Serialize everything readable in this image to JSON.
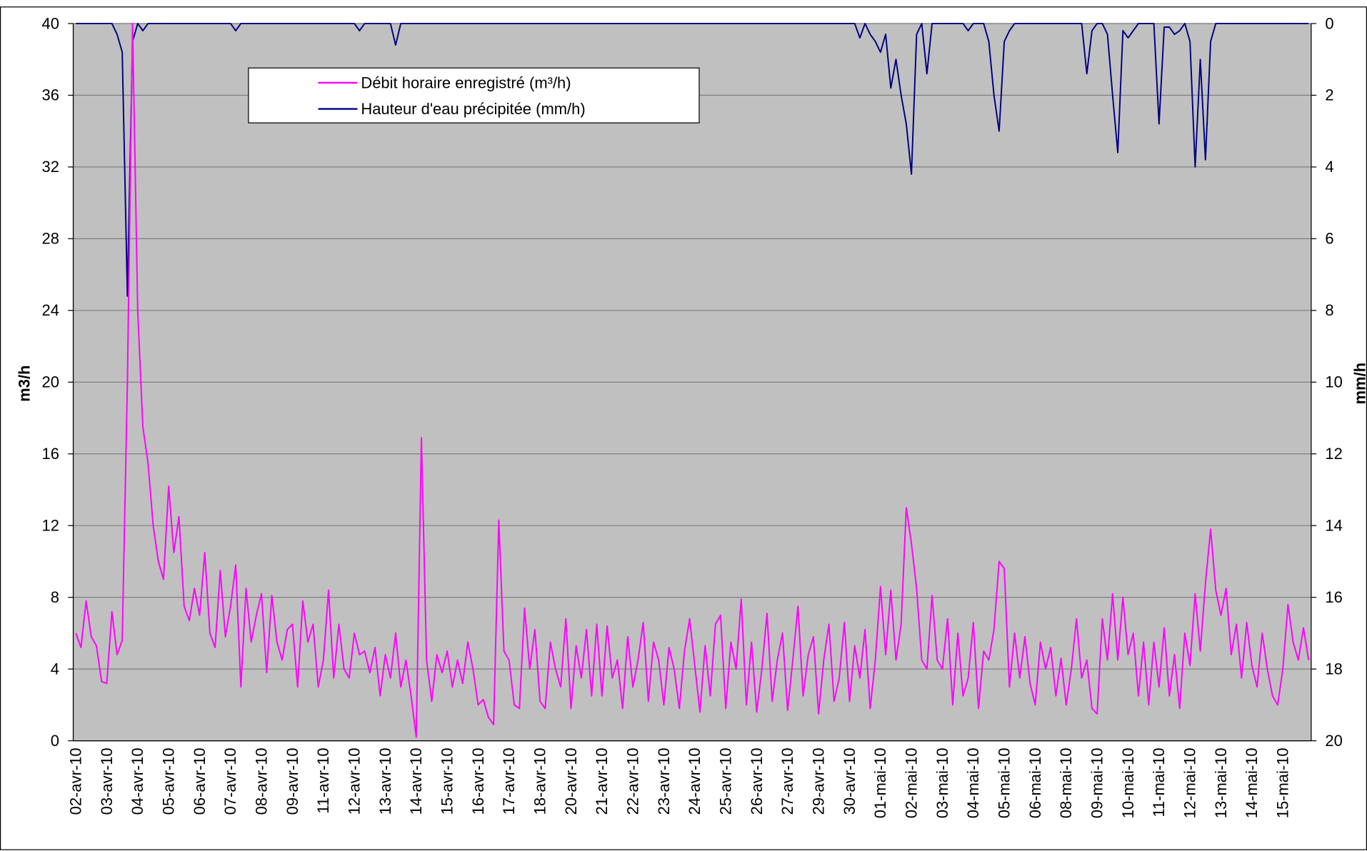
{
  "chart_data": {
    "type": "line",
    "ylabel": "m3/h",
    "y2label": "mm/h",
    "ylim": [
      0,
      40
    ],
    "yticks": [
      0,
      4,
      8,
      12,
      16,
      20,
      24,
      28,
      32,
      36,
      40
    ],
    "y2lim": [
      20,
      0
    ],
    "y2ticks": [
      0,
      2,
      4,
      6,
      8,
      10,
      12,
      14,
      16,
      18,
      20
    ],
    "grid": true,
    "legend": "upper left",
    "categories": [
      "02-avr-10",
      null,
      null,
      null,
      null,
      null,
      "03-avr-10",
      null,
      null,
      null,
      null,
      null,
      "04-avr-10",
      null,
      null,
      null,
      null,
      null,
      "05-avr-10",
      null,
      null,
      null,
      null,
      null,
      "06-avr-10",
      null,
      null,
      null,
      null,
      null,
      "07-avr-10",
      null,
      null,
      null,
      null,
      null,
      "08-avr-10",
      null,
      null,
      null,
      null,
      null,
      "09-avr-10",
      null,
      null,
      null,
      null,
      null,
      "11-avr-10",
      null,
      null,
      null,
      null,
      null,
      "12-avr-10",
      null,
      null,
      null,
      null,
      null,
      "13-avr-10",
      null,
      null,
      null,
      null,
      null,
      "14-avr-10",
      null,
      null,
      null,
      null,
      null,
      "15-avr-10",
      null,
      null,
      null,
      null,
      null,
      "16-avr-10",
      null,
      null,
      null,
      null,
      null,
      "17-avr-10",
      null,
      null,
      null,
      null,
      null,
      "18-avr-10",
      null,
      null,
      null,
      null,
      null,
      "20-avr-10",
      null,
      null,
      null,
      null,
      null,
      "21-avr-10",
      null,
      null,
      null,
      null,
      null,
      "22-avr-10",
      null,
      null,
      null,
      null,
      null,
      "23-avr-10",
      null,
      null,
      null,
      null,
      null,
      "24-avr-10",
      null,
      null,
      null,
      null,
      null,
      "25-avr-10",
      null,
      null,
      null,
      null,
      null,
      "26-avr-10",
      null,
      null,
      null,
      null,
      null,
      "27-avr-10",
      null,
      null,
      null,
      null,
      null,
      "29-avr-10",
      null,
      null,
      null,
      null,
      null,
      "30-avr-10",
      null,
      null,
      null,
      null,
      null,
      "01-mai-10",
      null,
      null,
      null,
      null,
      null,
      "02-mai-10",
      null,
      null,
      null,
      null,
      null,
      "03-mai-10",
      null,
      null,
      null,
      null,
      null,
      "04-mai-10",
      null,
      null,
      null,
      null,
      null,
      "05-mai-10",
      null,
      null,
      null,
      null,
      null,
      "06-mai-10",
      null,
      null,
      null,
      null,
      null,
      "08-mai-10",
      null,
      null,
      null,
      null,
      null,
      "09-mai-10",
      null,
      null,
      null,
      null,
      null,
      "10-mai-10",
      null,
      null,
      null,
      null,
      null,
      "11-mai-10",
      null,
      null,
      null,
      null,
      null,
      "12-mai-10",
      null,
      null,
      null,
      null,
      null,
      "13-mai-10",
      null,
      null,
      null,
      null,
      null,
      "14-mai-10",
      null,
      null,
      null,
      null,
      null,
      "15-mai-10",
      null,
      null,
      null,
      null,
      null
    ],
    "series": [
      {
        "name": "Débit horaire enregistré (m³/h)",
        "color": "#ff00ff",
        "values": [
          6,
          5.2,
          7.8,
          5.8,
          5.3,
          3.3,
          3.2,
          7.2,
          4.8,
          5.6,
          20,
          40,
          24,
          17.5,
          15.5,
          12,
          10,
          9,
          14.2,
          10.5,
          12.5,
          7.5,
          6.7,
          8.5,
          7,
          10.5,
          6,
          5.2,
          9.5,
          5.8,
          7.5,
          9.8,
          3,
          8.5,
          5.5,
          7,
          8.2,
          3.8,
          8.1,
          5.5,
          4.5,
          6.2,
          6.5,
          3,
          7.8,
          5.5,
          6.5,
          3,
          4.5,
          8.4,
          3.5,
          6.5,
          4,
          3.5,
          6,
          4.8,
          5,
          3.8,
          5.2,
          2.5,
          4.8,
          3.5,
          6,
          3,
          4.5,
          2.5,
          0.2,
          16.9,
          4.5,
          2.2,
          4.8,
          3.8,
          5,
          3,
          4.5,
          3.2,
          5.5,
          4,
          2,
          2.3,
          1.3,
          0.9,
          12.3,
          5,
          4.5,
          2,
          1.8,
          7.4,
          4,
          6.2,
          2.2,
          1.8,
          5.5,
          4,
          3,
          6.8,
          1.8,
          5.3,
          3.5,
          6.2,
          2.5,
          6.5,
          2.5,
          6.4,
          3.5,
          4.5,
          1.8,
          5.8,
          3,
          4.5,
          6.6,
          2.2,
          5.5,
          4.5,
          2,
          5.2,
          4,
          1.8,
          5,
          6.8,
          4.2,
          1.6,
          5.3,
          2.5,
          6.5,
          7,
          1.8,
          5.5,
          4,
          7.9,
          2,
          5.5,
          1.6,
          4,
          7.1,
          2.2,
          4.5,
          6,
          1.7,
          4.5,
          7.5,
          2.5,
          4.8,
          5.8,
          1.5,
          4.5,
          6.5,
          2.2,
          3.5,
          6.6,
          2.2,
          5.3,
          3.5,
          6.2,
          1.8,
          4.5,
          8.6,
          4.8,
          8.4,
          4.5,
          6.5,
          13,
          11,
          8.5,
          4.5,
          4,
          8.1,
          4.5,
          4,
          6.8,
          2,
          6,
          2.5,
          3.5,
          6.6,
          1.8,
          5,
          4.5,
          6.2,
          10,
          9.6,
          3,
          6,
          3.5,
          5.8,
          3.2,
          2,
          5.5,
          4,
          5.2,
          2.5,
          4.6,
          2,
          4,
          6.8,
          3.5,
          4.5,
          1.8,
          1.5,
          6.8,
          4.5,
          8.2,
          4.5,
          8,
          4.8,
          6,
          2.5,
          5.5,
          2,
          5.5,
          3,
          6.3,
          2.5,
          4.8,
          1.8,
          6,
          4.2,
          8.2,
          5,
          8.8,
          11.8,
          8.4,
          7,
          8.5,
          4.8,
          6.5,
          3.5,
          6.6,
          4.2,
          3,
          6,
          4,
          2.5,
          2,
          4,
          7.6,
          5.5,
          4.5,
          6.3,
          4.5
        ]
      },
      {
        "name": "Hauteur d'eau précipitée (mm/h)",
        "color": "#000080",
        "axis": "y2",
        "values": [
          0,
          0,
          0,
          0,
          0,
          0,
          0,
          0,
          0.3,
          0.8,
          7.6,
          0.5,
          0,
          0.2,
          0,
          0,
          0,
          0,
          0,
          0,
          0,
          0,
          0,
          0,
          0,
          0,
          0,
          0,
          0,
          0,
          0,
          0.2,
          0,
          0,
          0,
          0,
          0,
          0,
          0,
          0,
          0,
          0,
          0,
          0,
          0,
          0,
          0,
          0,
          0,
          0,
          0,
          0,
          0,
          0,
          0,
          0.2,
          0,
          0,
          0,
          0,
          0,
          0,
          0.6,
          0,
          0,
          0,
          0,
          0,
          0,
          0,
          0,
          0,
          0,
          0,
          0,
          0,
          0,
          0,
          0,
          0,
          0,
          0,
          0,
          0,
          0,
          0,
          0,
          0,
          0,
          0,
          0,
          0,
          0,
          0,
          0,
          0,
          0,
          0,
          0,
          0,
          0,
          0,
          0,
          0,
          0,
          0,
          0,
          0,
          0,
          0,
          0,
          0,
          0,
          0,
          0,
          0,
          0,
          0,
          0,
          0,
          0,
          0,
          0,
          0,
          0,
          0,
          0,
          0,
          0,
          0,
          0,
          0,
          0,
          0,
          0,
          0,
          0,
          0,
          0,
          0,
          0,
          0,
          0,
          0,
          0,
          0,
          0,
          0,
          0,
          0,
          0,
          0,
          0.4,
          0,
          0.3,
          0.5,
          0.8,
          0.3,
          1.8,
          1,
          2,
          2.8,
          4.2,
          0.3,
          0,
          1.4,
          0,
          0,
          0,
          0,
          0,
          0,
          0,
          0.2,
          0,
          0,
          0,
          0.5,
          2,
          3,
          0.5,
          0.2,
          0,
          0,
          0,
          0,
          0,
          0,
          0,
          0,
          0,
          0,
          0,
          0,
          0,
          0,
          1.4,
          0.2,
          0,
          0,
          0.3,
          2,
          3.6,
          0.2,
          0.4,
          0.2,
          0,
          0,
          0,
          0,
          2.8,
          0.1,
          0.1,
          0.3,
          0.2,
          0,
          0.5,
          4,
          1,
          3.8,
          0.5,
          0,
          0,
          0,
          0,
          0,
          0,
          0,
          0,
          0,
          0,
          0,
          0,
          0,
          0,
          0,
          0,
          0,
          0,
          0
        ]
      }
    ]
  }
}
